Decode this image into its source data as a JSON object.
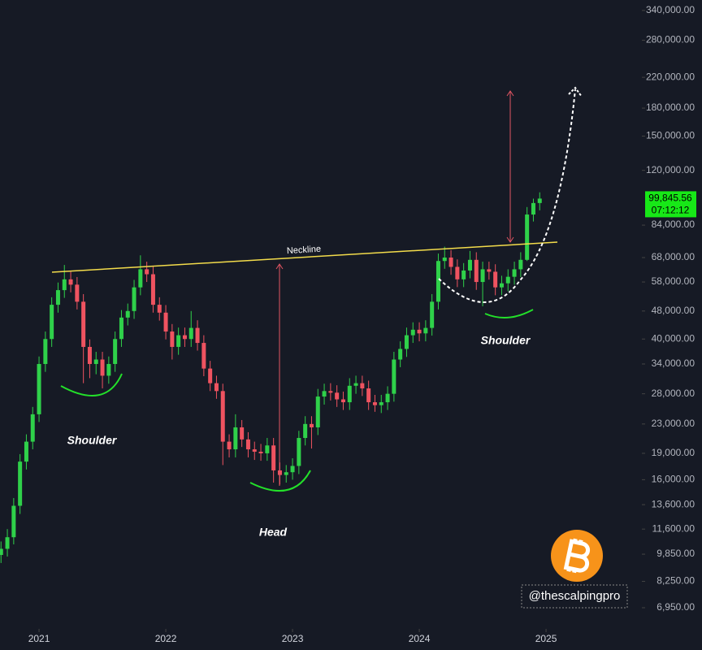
{
  "chart_data": {
    "type": "candlestick",
    "log_scale": true,
    "colors": {
      "up": "#2fd14a",
      "down": "#ef5360"
    },
    "x": [
      2020.7,
      2020.75,
      2020.8,
      2020.85,
      2020.9,
      2020.95,
      2021,
      2021.05,
      2021.1,
      2021.15,
      2021.2,
      2021.25,
      2021.3,
      2021.35,
      2021.4,
      2021.45,
      2021.5,
      2021.55,
      2021.6,
      2021.65,
      2021.7,
      2021.75,
      2021.8,
      2021.85,
      2021.9,
      2021.95,
      2022,
      2022.05,
      2022.1,
      2022.15,
      2022.2,
      2022.25,
      2022.3,
      2022.35,
      2022.4,
      2022.45,
      2022.5,
      2022.55,
      2022.6,
      2022.65,
      2022.7,
      2022.75,
      2022.8,
      2022.85,
      2022.9,
      2022.95,
      2023,
      2023.05,
      2023.1,
      2023.15,
      2023.2,
      2023.25,
      2023.3,
      2023.35,
      2023.4,
      2023.45,
      2023.5,
      2023.55,
      2023.6,
      2023.65,
      2023.7,
      2023.75,
      2023.8,
      2023.85,
      2023.9,
      2023.95,
      2024,
      2024.05,
      2024.1,
      2024.15,
      2024.2,
      2024.25,
      2024.3,
      2024.35,
      2024.4,
      2024.45,
      2024.5,
      2024.55,
      2024.6,
      2024.65,
      2024.7,
      2024.75,
      2024.8,
      2024.85,
      2024.9,
      2024.95
    ],
    "ohlc": [
      [
        9800,
        10700,
        9300,
        10200
      ],
      [
        10200,
        11600,
        9700,
        11000
      ],
      [
        11000,
        14200,
        10500,
        13500
      ],
      [
        13500,
        18900,
        12800,
        18000
      ],
      [
        18000,
        21500,
        17100,
        20500
      ],
      [
        20500,
        25700,
        19500,
        24500
      ],
      [
        24500,
        35700,
        23300,
        34000
      ],
      [
        34000,
        42000,
        32300,
        40000
      ],
      [
        40000,
        52500,
        38000,
        50000
      ],
      [
        50000,
        57800,
        47500,
        55000
      ],
      [
        55000,
        64800,
        52300,
        59000
      ],
      [
        59000,
        62000,
        54200,
        57000
      ],
      [
        57000,
        59900,
        48500,
        51000
      ],
      [
        51000,
        53600,
        30000,
        38000
      ],
      [
        38000,
        39900,
        31000,
        34000
      ],
      [
        34000,
        36800,
        31800,
        35000
      ],
      [
        35000,
        36800,
        29000,
        31500
      ],
      [
        31500,
        35700,
        29900,
        34000
      ],
      [
        34000,
        42000,
        32300,
        40000
      ],
      [
        40000,
        48300,
        38000,
        46000
      ],
      [
        46000,
        50400,
        43700,
        48000
      ],
      [
        48000,
        58800,
        45600,
        56000
      ],
      [
        56000,
        69000,
        53200,
        63000
      ],
      [
        63000,
        66200,
        58000,
        61000
      ],
      [
        61000,
        64100,
        47500,
        50000
      ],
      [
        50000,
        52500,
        45100,
        47500
      ],
      [
        47500,
        49900,
        39900,
        42000
      ],
      [
        42000,
        44100,
        35000,
        38000
      ],
      [
        38000,
        43100,
        36100,
        41000
      ],
      [
        41000,
        43100,
        38000,
        40000
      ],
      [
        40000,
        48000,
        38000,
        43000
      ],
      [
        43000,
        45200,
        37100,
        39000
      ],
      [
        39000,
        41000,
        31400,
        33000
      ],
      [
        33000,
        34700,
        28500,
        30000
      ],
      [
        30000,
        31500,
        27100,
        28500
      ],
      [
        28500,
        29900,
        17600,
        20500
      ],
      [
        20500,
        21500,
        18500,
        19500
      ],
      [
        19500,
        24500,
        18500,
        22500
      ],
      [
        22500,
        23600,
        19800,
        20800
      ],
      [
        20800,
        21800,
        18500,
        19500
      ],
      [
        19500,
        20500,
        18200,
        19200
      ],
      [
        19200,
        20200,
        18100,
        19000
      ],
      [
        19000,
        21000,
        18100,
        20000
      ],
      [
        20000,
        21000,
        15700,
        17000
      ],
      [
        17000,
        17900,
        15500,
        16500
      ],
      [
        16500,
        17600,
        15700,
        16800
      ],
      [
        16800,
        18400,
        16000,
        17500
      ],
      [
        17500,
        22000,
        16600,
        21000
      ],
      [
        21000,
        24200,
        20000,
        23000
      ],
      [
        23000,
        24200,
        19600,
        22500
      ],
      [
        22500,
        28900,
        21400,
        27500
      ],
      [
        27500,
        29900,
        26100,
        28500
      ],
      [
        28500,
        30000,
        26800,
        28200
      ],
      [
        28200,
        29600,
        25700,
        27000
      ],
      [
        27000,
        28400,
        25200,
        26500
      ],
      [
        26500,
        31000,
        25200,
        29500
      ],
      [
        29500,
        31500,
        28000,
        30000
      ],
      [
        30000,
        31500,
        27600,
        29000
      ],
      [
        29000,
        30500,
        25200,
        26500
      ],
      [
        26500,
        27800,
        24900,
        26000
      ],
      [
        26000,
        27800,
        24700,
        26500
      ],
      [
        26500,
        29400,
        25200,
        28000
      ],
      [
        28000,
        36800,
        26600,
        35000
      ],
      [
        35000,
        39400,
        33300,
        37500
      ],
      [
        37500,
        43100,
        35600,
        41000
      ],
      [
        41000,
        44600,
        39000,
        42500
      ],
      [
        42500,
        44600,
        39400,
        41500
      ],
      [
        41500,
        45200,
        39400,
        43000
      ],
      [
        43000,
        53600,
        40900,
        51000
      ],
      [
        51000,
        69800,
        48500,
        66500
      ],
      [
        66500,
        73000,
        63200,
        68000
      ],
      [
        68000,
        71400,
        60800,
        64000
      ],
      [
        64000,
        67200,
        56100,
        59000
      ],
      [
        59000,
        65600,
        56100,
        62500
      ],
      [
        62500,
        71000,
        59400,
        67000
      ],
      [
        67000,
        70400,
        55100,
        58000
      ],
      [
        58000,
        66200,
        49500,
        63000
      ],
      [
        63000,
        66200,
        58900,
        62000
      ],
      [
        62000,
        65100,
        53200,
        56000
      ],
      [
        56000,
        60400,
        53200,
        57500
      ],
      [
        57500,
        63000,
        54600,
        60000
      ],
      [
        60000,
        66200,
        57000,
        63000
      ],
      [
        63000,
        70400,
        59900,
        67000
      ],
      [
        67000,
        94500,
        66500,
        90000
      ],
      [
        90000,
        99800,
        86000,
        97000
      ],
      [
        97000,
        104000,
        92500,
        99845.56
      ]
    ],
    "xlim": [
      2020.692,
      2025.756
    ],
    "xticks": [
      2021,
      2022,
      2023,
      2024,
      2025
    ],
    "ylim": [
      6185,
      364000
    ],
    "yticks": [
      {
        "value": 340000,
        "label": "340,000.00"
      },
      {
        "value": 280000,
        "label": "280,000.00"
      },
      {
        "value": 220000,
        "label": "220,000.00"
      },
      {
        "value": 180000,
        "label": "180,000.00"
      },
      {
        "value": 150000,
        "label": "150,000.00"
      },
      {
        "value": 120000,
        "label": "120,000.00"
      },
      {
        "value": 84000,
        "label": "84,000.00"
      },
      {
        "value": 68000,
        "label": "68,000.00"
      },
      {
        "value": 58000,
        "label": "58,000.00"
      },
      {
        "value": 48000,
        "label": "48,000.00"
      },
      {
        "value": 40000,
        "label": "40,000.00"
      },
      {
        "value": 34000,
        "label": "34,000.00"
      },
      {
        "value": 28000,
        "label": "28,000.00"
      },
      {
        "value": 23000,
        "label": "23,000.00"
      },
      {
        "value": 19000,
        "label": "19,000.00"
      },
      {
        "value": 16000,
        "label": "16,000.00"
      },
      {
        "value": 13600,
        "label": "13,600.00"
      },
      {
        "value": 11600,
        "label": "11,600.00"
      },
      {
        "value": 9850,
        "label": "9,850.00"
      },
      {
        "value": 8250,
        "label": "8,250.00"
      },
      {
        "value": 6950,
        "label": "6,950.00"
      }
    ],
    "last_price": {
      "value": 99845.56,
      "label": "99,845.56"
    },
    "countdown": "07:12:12",
    "annotations": [
      "Neckline",
      "Shoulder",
      "Head",
      "Shoulder"
    ],
    "watermark": "@thescalpingpro"
  }
}
